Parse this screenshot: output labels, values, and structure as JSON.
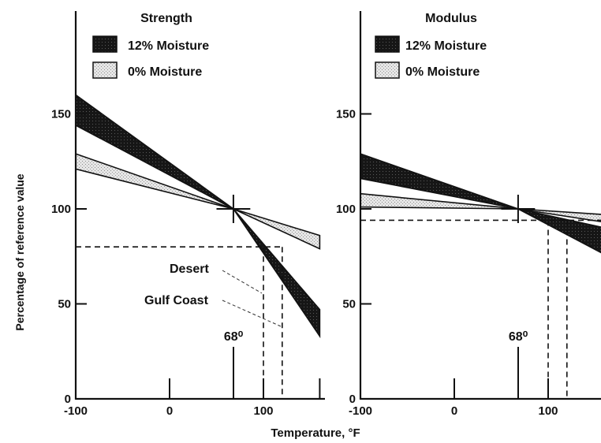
{
  "chart_data": [
    {
      "type": "area",
      "title": "Strength",
      "ylabel": "Percentage of reference value",
      "xlabel": "Temperature, °F",
      "xlim": [
        -100,
        160
      ],
      "ylim": [
        0,
        200
      ],
      "x_ticks": [
        -100,
        0,
        100
      ],
      "y_ticks": [
        0,
        50,
        100,
        150
      ],
      "legend": [
        {
          "label": "12% Moisture",
          "fill": "#1a1a1a"
        },
        {
          "label": "0% Moisture",
          "fill": "#d9d9d9"
        }
      ],
      "reference_point": {
        "x": 68,
        "y": 100,
        "label": "68⁰"
      },
      "series": [
        {
          "name": "12% Moisture",
          "fill": "#1a1a1a",
          "upper": [
            [
              -100,
              160
            ],
            [
              68,
              100
            ],
            [
              160,
              47
            ]
          ],
          "lower": [
            [
              -100,
              144
            ],
            [
              68,
              100
            ],
            [
              160,
              33
            ]
          ]
        },
        {
          "name": "0% Moisture",
          "fill": "#d9d9d9",
          "upper": [
            [
              -100,
              129
            ],
            [
              68,
              100
            ],
            [
              160,
              86
            ]
          ],
          "lower": [
            [
              -100,
              121
            ],
            [
              68,
              100
            ],
            [
              160,
              79
            ]
          ]
        }
      ],
      "annotations": [
        {
          "label": "Desert",
          "x": 100,
          "y": 80
        },
        {
          "label": "Gulf Coast",
          "x": 120,
          "y": 80
        }
      ]
    },
    {
      "type": "area",
      "title": "Modulus",
      "xlim": [
        -100,
        160
      ],
      "ylim": [
        0,
        200
      ],
      "x_ticks": [
        -100,
        0,
        100
      ],
      "y_ticks": [
        0,
        50,
        100,
        150
      ],
      "legend": [
        {
          "label": "12% Moisture",
          "fill": "#1a1a1a"
        },
        {
          "label": "0% Moisture",
          "fill": "#d9d9d9"
        }
      ],
      "reference_point": {
        "x": 68,
        "y": 100,
        "label": "68⁰"
      },
      "series": [
        {
          "name": "12% Moisture",
          "fill": "#1a1a1a",
          "upper": [
            [
              -100,
              129
            ],
            [
              68,
              100
            ],
            [
              160,
              90
            ]
          ],
          "lower": [
            [
              -100,
              116
            ],
            [
              68,
              100
            ],
            [
              160,
              76
            ]
          ]
        },
        {
          "name": "0% Moisture",
          "fill": "#d9d9d9",
          "upper": [
            [
              -100,
              108
            ],
            [
              68,
              100
            ],
            [
              160,
              97
            ]
          ],
          "lower": [
            [
              -100,
              101
            ],
            [
              68,
              100
            ],
            [
              160,
              93
            ]
          ]
        }
      ],
      "annotations": [
        {
          "label": "",
          "x": 100,
          "y": 94
        },
        {
          "label": "",
          "x": 120,
          "y": 94
        }
      ]
    }
  ],
  "texts": {
    "left_title": "Strength",
    "right_title": "Modulus",
    "legend_wet": "12% Moisture",
    "legend_dry": "0% Moisture",
    "ylabel": "Percentage of reference value",
    "xlabel": "Temperature, °F",
    "desert": "Desert",
    "gulf": "Gulf Coast",
    "ref": "68⁰"
  }
}
